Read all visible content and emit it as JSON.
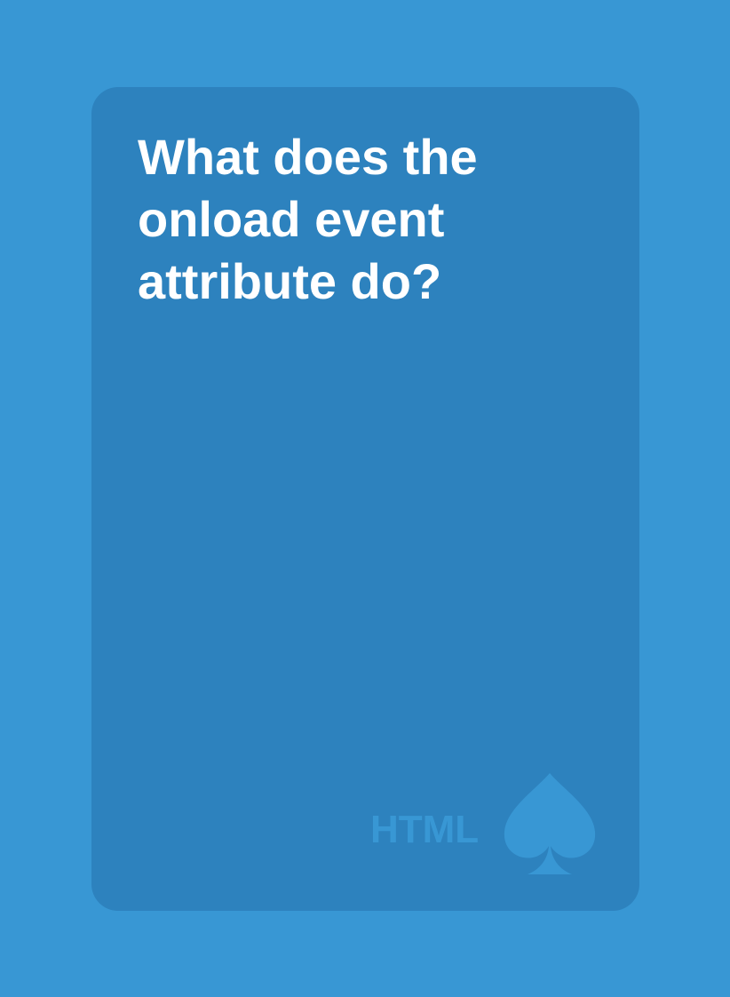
{
  "card": {
    "question": "What does the onload event attribute do?",
    "category": "HTML",
    "suit_icon": "spade-icon"
  },
  "colors": {
    "background": "#3897d4",
    "card": "#2d82be",
    "text": "#ffffff",
    "accent": "#3897d4"
  }
}
